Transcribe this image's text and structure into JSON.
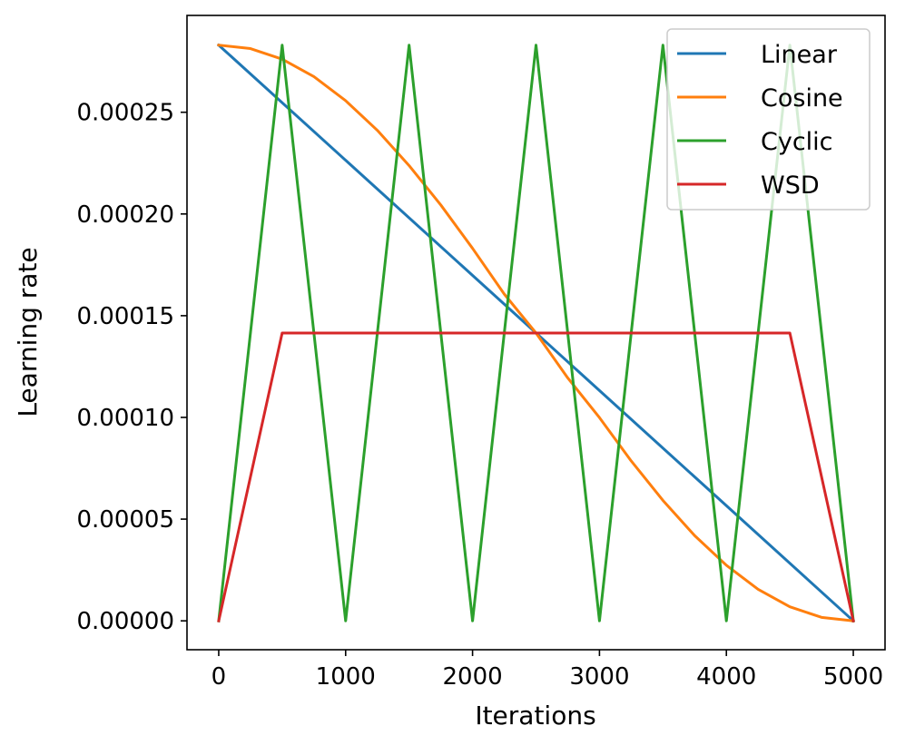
{
  "chart_data": {
    "type": "line",
    "title": "",
    "xlabel": "Iterations",
    "ylabel": "Learning rate",
    "xlim": [
      -250,
      5250
    ],
    "ylim": [
      -1.42e-05,
      0.0002976
    ],
    "x_ticks": [
      0,
      1000,
      2000,
      3000,
      4000,
      5000
    ],
    "x_tick_labels": [
      "0",
      "1000",
      "2000",
      "3000",
      "4000",
      "5000"
    ],
    "y_ticks": [
      0.0,
      5e-05,
      0.0001,
      0.00015,
      0.0002,
      0.00025
    ],
    "y_tick_labels": [
      "0.00000",
      "0.00005",
      "0.00010",
      "0.00015",
      "0.00020",
      "0.00025"
    ],
    "grid": false,
    "legend_position": "top-right",
    "series": [
      {
        "name": "Linear",
        "color": "#1f77b4",
        "x": [
          0,
          5000
        ],
        "y": [
          0.000283,
          0.0
        ]
      },
      {
        "name": "Cosine",
        "color": "#ff7f0e",
        "x": [
          0,
          250,
          500,
          750,
          1000,
          1250,
          1500,
          1750,
          2000,
          2250,
          2500,
          2750,
          3000,
          3250,
          3500,
          3750,
          4000,
          4250,
          4500,
          4750,
          5000
        ],
        "y": [
          0.000283,
          0.0002813,
          0.0002761,
          0.0002675,
          0.0002557,
          0.0002411,
          0.0002238,
          0.0002044,
          0.0001831,
          0.0001606,
          0.0001415,
          0.0001194,
          9.99e-05,
          7.86e-05,
          5.92e-05,
          4.19e-05,
          2.73e-05,
          1.55e-05,
          6.9e-06,
          1.7e-06,
          0.0
        ]
      },
      {
        "name": "Cyclic",
        "color": "#2ca02c",
        "x": [
          0,
          500,
          1000,
          1500,
          2000,
          2500,
          3000,
          3500,
          4000,
          4500,
          5000
        ],
        "y": [
          0.0,
          0.000283,
          0.0,
          0.000283,
          0.0,
          0.000283,
          0.0,
          0.000283,
          0.0,
          0.000283,
          0.0
        ]
      },
      {
        "name": "WSD",
        "color": "#d62728",
        "x": [
          0,
          500,
          4500,
          5000
        ],
        "y": [
          0.0,
          0.0001415,
          0.0001415,
          0.0
        ]
      }
    ]
  }
}
